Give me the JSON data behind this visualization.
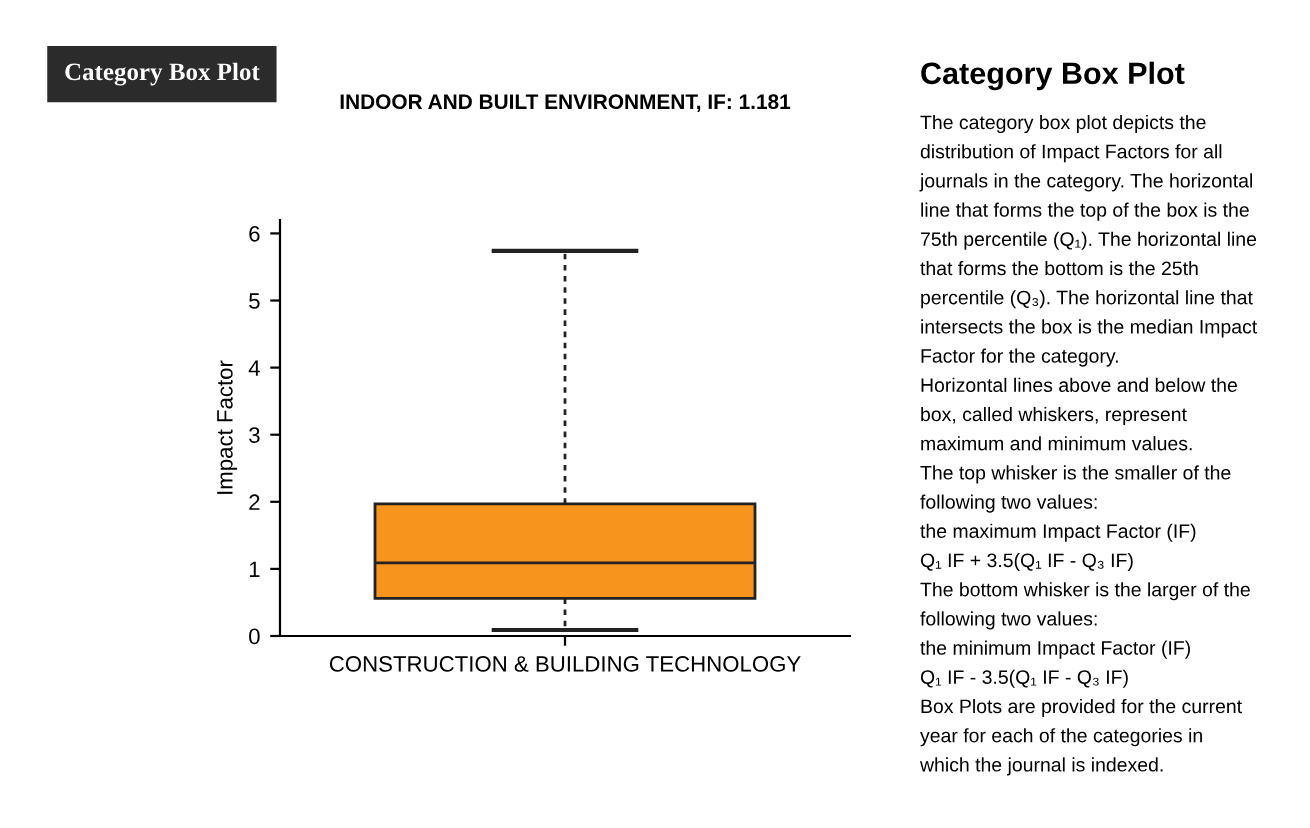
{
  "chart_data": [
    {
      "type": "box",
      "title": "INDOOR AND BUILT ENVIRONMENT, IF: 1.181",
      "ylabel": "Impact Factor",
      "annotations": [
        "Category Box Plot"
      ],
      "categories": [
        "CONSTRUCTION & BUILDING TECHNOLOGY"
      ],
      "boxes": [
        {
          "low": 0.09,
          "q1": 0.56,
          "median": 1.09,
          "q3": 1.97,
          "high": 5.74
        }
      ],
      "color": "#f7941d",
      "ylim": [
        0,
        6.2
      ],
      "yticks": [
        0,
        1,
        2,
        3,
        4,
        5,
        6
      ],
      "grid": false
    },
    {
      "type": "other",
      "title": "Category Box Plot",
      "annotations": [
        "The category box plot depicts the",
        "distribution of Impact Factors for all",
        "journals in the category. The horizontal",
        "line that forms the top of the box is the",
        "75th percentile (Q₁). The horizontal line",
        "that forms the bottom is the 25th",
        "percentile (Q₃). The horizontal line that",
        "intersects the box is the median Impact",
        "Factor for the category.",
        "Horizontal lines above and below the",
        "box, called whiskers, represent",
        "maximum and minimum values.",
        "The top whisker is the smaller of the",
        "following two values:",
        "the maximum Impact Factor (IF)",
        "Q₁ IF + 3.5(Q₁ IF - Q₃ IF)",
        "The bottom whisker is the larger of the",
        "following two values:",
        "the minimum Impact Factor (IF)",
        "Q₁ IF - 3.5(Q₁ IF - Q₃ IF)",
        "Box Plots are provided for the current",
        "year for each of the categories in",
        "which the journal is indexed."
      ]
    }
  ]
}
